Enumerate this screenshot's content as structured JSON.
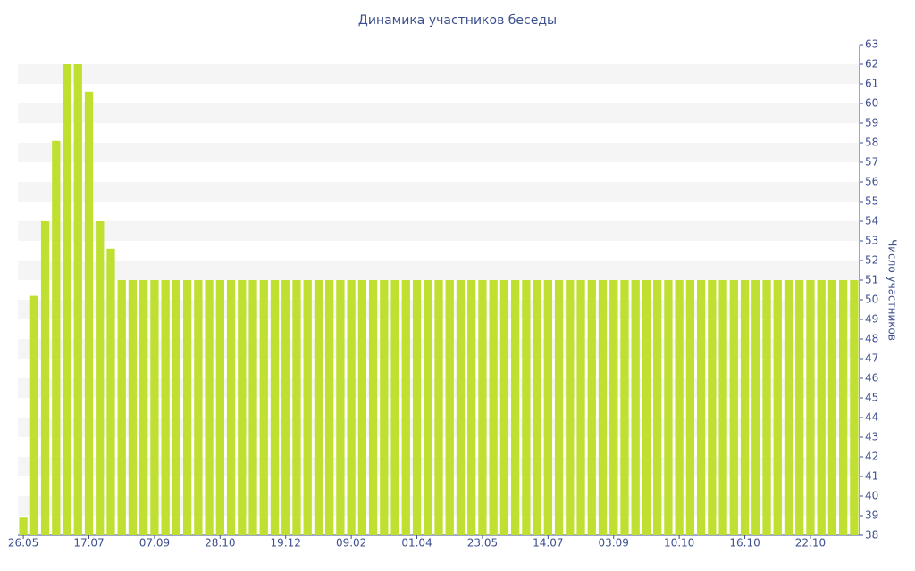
{
  "chart_data": {
    "type": "bar",
    "title": "Динамика участников беседы",
    "y_label": "Число участников",
    "categories": [
      "26.05",
      null,
      null,
      null,
      null,
      null,
      "17.07",
      null,
      null,
      null,
      null,
      null,
      "07.09",
      null,
      null,
      null,
      null,
      null,
      "28.10",
      null,
      null,
      null,
      null,
      null,
      "19.12",
      null,
      null,
      null,
      null,
      null,
      "09.02",
      null,
      null,
      null,
      null,
      null,
      "01.04",
      null,
      null,
      null,
      null,
      null,
      "23.05",
      null,
      null,
      null,
      null,
      null,
      "14.07",
      null,
      null,
      null,
      null,
      null,
      "03.09",
      null,
      null,
      null,
      null,
      null,
      "10.10",
      null,
      null,
      null,
      null,
      null,
      "16.10",
      null,
      null,
      null,
      null,
      null,
      "22.10",
      null,
      null,
      null,
      null
    ],
    "values": [
      38.9,
      50.2,
      54,
      58.1,
      62,
      62,
      60.6,
      54,
      52.6,
      51,
      51,
      51,
      51,
      51,
      51,
      51,
      51,
      51,
      51,
      51,
      51,
      51,
      51,
      51,
      51,
      51,
      51,
      51,
      51,
      51,
      51,
      51,
      51,
      51,
      51,
      51,
      51,
      51,
      51,
      51,
      51,
      51,
      51,
      51,
      51,
      51,
      51,
      51,
      51,
      51,
      51,
      51,
      51,
      51,
      51,
      51,
      51,
      51,
      51,
      51,
      51,
      51,
      51,
      51,
      51,
      51,
      51,
      51,
      51,
      51,
      51,
      51,
      51,
      51,
      51,
      51,
      51
    ],
    "color": "#bfe031",
    "ylim": [
      38,
      63
    ],
    "yticks": [
      38,
      39,
      40,
      41,
      42,
      43,
      44,
      45,
      46,
      47,
      48,
      49,
      50,
      51,
      52,
      53,
      54,
      55,
      56,
      57,
      58,
      59,
      60,
      61,
      62,
      63
    ],
    "grid": true
  }
}
